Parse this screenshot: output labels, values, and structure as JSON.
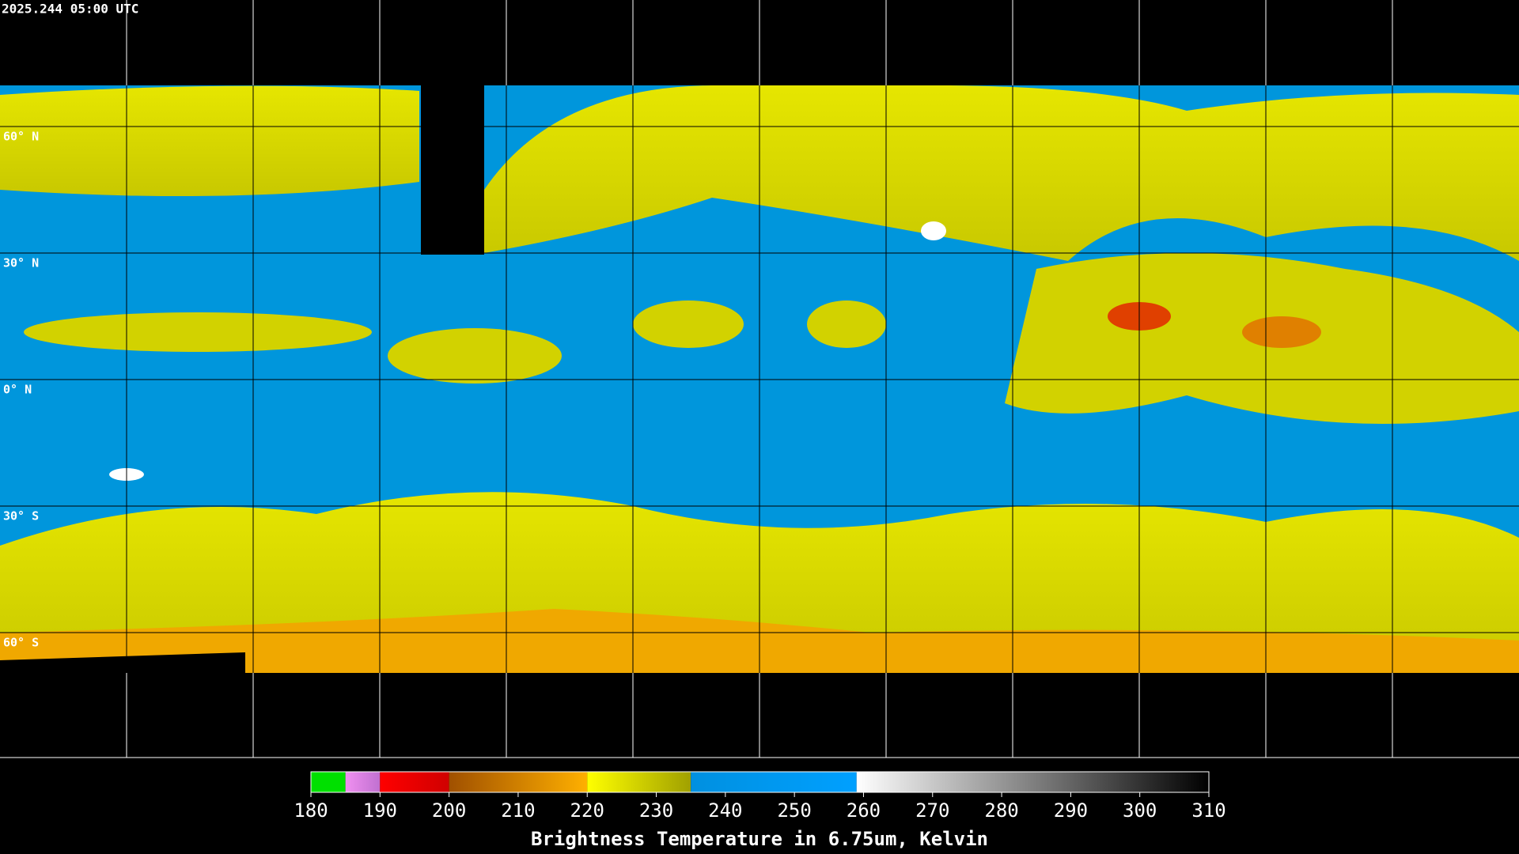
{
  "header": {
    "title": "2025.244 05:00 UTC"
  },
  "map": {
    "latitude_labels": [
      "60° N",
      "30° N",
      "0° N",
      "30° S",
      "60° S"
    ]
  },
  "colorbar": {
    "title": "Brightness Temperature in 6.75um, Kelvin",
    "range": [
      180,
      310
    ],
    "ticks": [
      180,
      190,
      200,
      210,
      220,
      230,
      240,
      250,
      260,
      270,
      280,
      290,
      300,
      310
    ],
    "segments": [
      {
        "from": 180,
        "to": 185,
        "colors": [
          "#00e000",
          "#00e000"
        ]
      },
      {
        "from": 185,
        "to": 190,
        "colors": [
          "#f090f0",
          "#c070d0"
        ]
      },
      {
        "from": 190,
        "to": 200,
        "colors": [
          "#ff0000",
          "#d00000"
        ]
      },
      {
        "from": 200,
        "to": 220,
        "colors": [
          "#a05000",
          "#ffb000"
        ]
      },
      {
        "from": 220,
        "to": 235,
        "colors": [
          "#ffff00",
          "#a0a000"
        ]
      },
      {
        "from": 235,
        "to": 259,
        "colors": [
          "#0090e0",
          "#00a0ff"
        ]
      },
      {
        "from": 259,
        "to": 310,
        "colors": [
          "#ffffff",
          "#000000"
        ]
      }
    ]
  }
}
